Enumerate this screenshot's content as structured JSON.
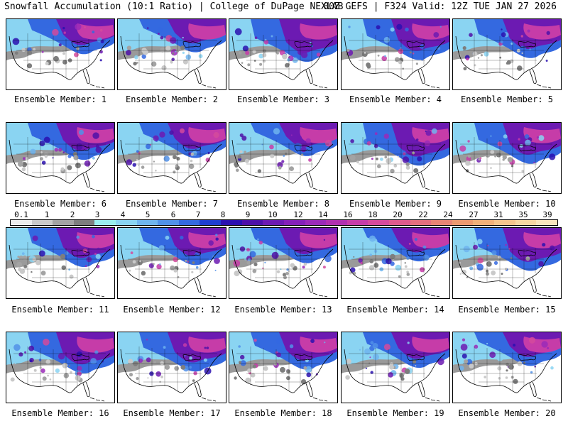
{
  "header": {
    "title_left": "Snowfall Accumulation (10:1 Ratio) | College of DuPage NEXLAB",
    "title_right": "00Z GEFS | F324 Valid: 12Z TUE JAN 27 2026"
  },
  "legend": {
    "ticks": [
      "0.1",
      "1",
      "2",
      "3",
      "4",
      "5",
      "6",
      "7",
      "8",
      "9",
      "10",
      "12",
      "14",
      "16",
      "18",
      "20",
      "22",
      "24",
      "27",
      "31",
      "35",
      "39"
    ],
    "colors": [
      "#ececec",
      "#c9c9c9",
      "#a3a3a3",
      "#7e7e7e",
      "#9aeeee",
      "#8ad4f2",
      "#6fb4ee",
      "#5191e8",
      "#3469e0",
      "#1f3ed2",
      "#2a10b0",
      "#4d10a8",
      "#6c1ab2",
      "#8420b8",
      "#9a2ab8",
      "#b030b0",
      "#c63ca8",
      "#d44a9c",
      "#de5a8c",
      "#e46e7e",
      "#e88474",
      "#ec9a70",
      "#f0b07a",
      "#f4c48c",
      "#f6d6a2",
      "#f8e4bc"
    ]
  },
  "members": [
    {
      "label": "Ensemble Member: 1"
    },
    {
      "label": "Ensemble Member: 2"
    },
    {
      "label": "Ensemble Member: 3"
    },
    {
      "label": "Ensemble Member: 4"
    },
    {
      "label": "Ensemble Member: 5"
    },
    {
      "label": "Ensemble Member: 6"
    },
    {
      "label": "Ensemble Member: 7"
    },
    {
      "label": "Ensemble Member: 8"
    },
    {
      "label": "Ensemble Member: 9"
    },
    {
      "label": "Ensemble Member: 10"
    },
    {
      "label": "Ensemble Member: 11"
    },
    {
      "label": "Ensemble Member: 12"
    },
    {
      "label": "Ensemble Member: 13"
    },
    {
      "label": "Ensemble Member: 14"
    },
    {
      "label": "Ensemble Member: 15"
    },
    {
      "label": "Ensemble Member: 16"
    },
    {
      "label": "Ensemble Member: 17"
    },
    {
      "label": "Ensemble Member: 18"
    },
    {
      "label": "Ensemble Member: 19"
    },
    {
      "label": "Ensemble Member: 20"
    }
  ]
}
